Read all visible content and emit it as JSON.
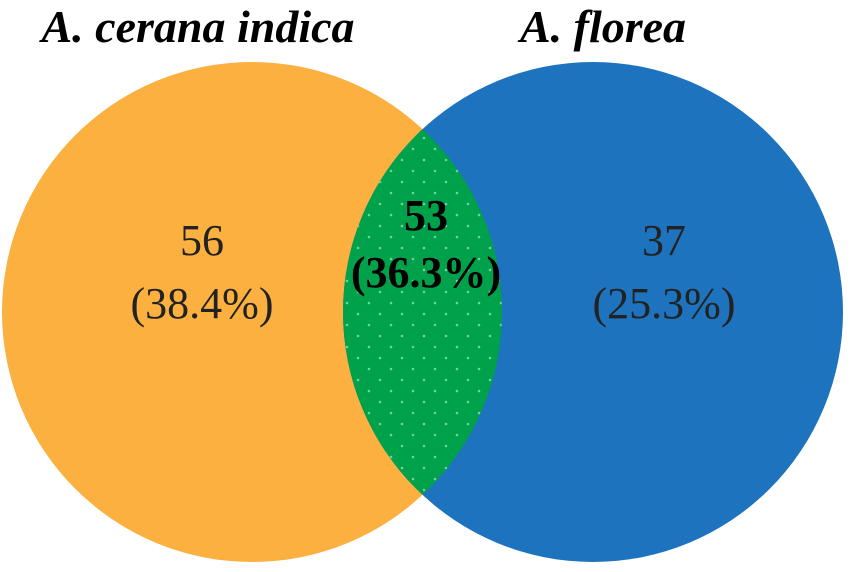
{
  "sets": [
    {
      "name": "A. cerana indica",
      "color": "#fbb040"
    },
    {
      "name": "A. florea",
      "color": "#1e73be"
    }
  ],
  "regions": {
    "left_only": {
      "count": "56",
      "percent": "(38.4%)"
    },
    "intersection": {
      "count": "53",
      "percent": "(36.3%)",
      "color": "#00a14b"
    },
    "right_only": {
      "count": "37",
      "percent": "(25.3%)"
    }
  }
}
